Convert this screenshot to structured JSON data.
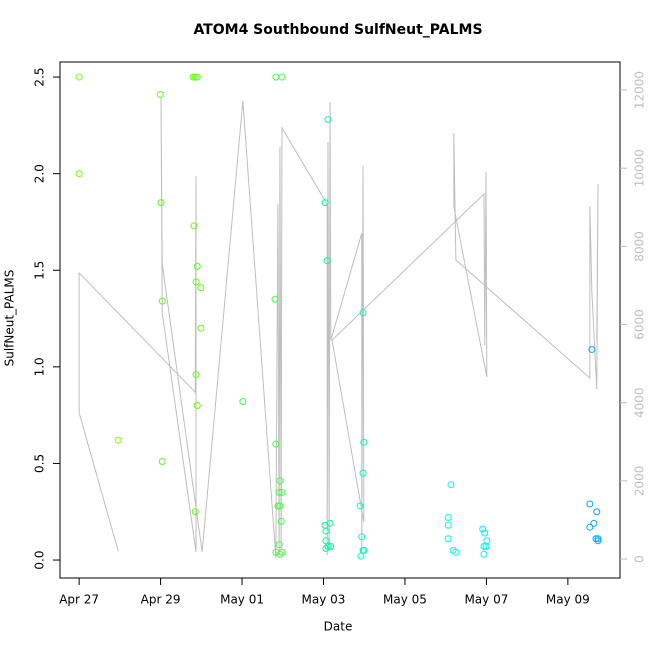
{
  "chart_data": {
    "type": "scatter",
    "title": "ATOM4 Southbound SulfNeut_PALMS",
    "x_label": "Date",
    "y_label": "SulfNeut_PALMS",
    "xlim": [
      -0.47,
      13.28
    ],
    "ylim": [
      -0.093,
      2.578
    ],
    "y2lim": [
      -486,
      12718
    ],
    "xticks": [
      {
        "value": 0,
        "label": "Apr 27"
      },
      {
        "value": 2,
        "label": "Apr 29"
      },
      {
        "value": 4,
        "label": "May 01"
      },
      {
        "value": 6,
        "label": "May 03"
      },
      {
        "value": 8,
        "label": "May 05"
      },
      {
        "value": 10,
        "label": "May 07"
      },
      {
        "value": 12,
        "label": "May 09"
      }
    ],
    "yticks": [
      {
        "value": 0,
        "label": "0.0"
      },
      0.5,
      {
        "value": 1,
        "label": "1.0"
      },
      1.5,
      {
        "value": 2,
        "label": "2.0"
      },
      2.5
    ],
    "y2ticks": [
      0,
      2000,
      4000,
      6000,
      8000,
      10000,
      12000
    ],
    "y2_color": "#bebebe",
    "series": [
      {
        "type": "line",
        "axis": "y2",
        "color": "#bebebe",
        "x": [
          0.96,
          0,
          0,
          2.85,
          2.87,
          2.87,
          2.04,
          2.01,
          2.04,
          3.02,
          4.02,
          4.83,
          4.88,
          4.91,
          4.93,
          4.96,
          4.98,
          6.09,
          6.09,
          6.11,
          6.14,
          6.16,
          6.18,
          6.94,
          6.94,
          6.97,
          6.99,
          6.21,
          9.94,
          9.96,
          9.99,
          10.01,
          9.2,
          9.2,
          9.25,
          12.54,
          12.54,
          12.59,
          12.71,
          12.74,
          12.71
        ],
        "values": [
          200,
          3740,
          7320,
          4270,
          9800,
          180,
          6300,
          11800,
          7550,
          180,
          11720,
          30,
          9080,
          100,
          10540,
          260,
          11030,
          9080,
          100,
          10670,
          360,
          11700,
          5600,
          8340,
          130,
          10060,
          950,
          5600,
          9340,
          5480,
          9900,
          4660,
          9010,
          10900,
          7650,
          4630,
          9030,
          6810,
          4350,
          9600,
          5600
        ]
      },
      {
        "color": "#80ff00",
        "x": [
          0,
          0,
          0.96
        ],
        "values": [
          2.5,
          2.0,
          0.62
        ]
      },
      {
        "color": "#60ff10",
        "x": [
          1.99,
          2.01,
          2.04,
          2.04,
          2.8,
          2.85,
          2.9,
          2.82,
          2.9,
          2.87,
          2.99,
          2.99,
          2.87,
          2.9,
          2.85
        ],
        "values": [
          2.41,
          1.85,
          1.34,
          0.51,
          2.5,
          2.5,
          2.5,
          1.73,
          1.52,
          1.44,
          1.41,
          1.2,
          0.96,
          0.8,
          0.25
        ]
      },
      {
        "color": "#40ff40",
        "x": [
          4.02,
          4.83,
          4.98,
          4.81,
          4.83,
          4.93,
          4.91,
          4.98,
          4.88,
          4.93,
          4.96,
          4.91,
          4.83,
          4.93,
          4.98
        ],
        "values": [
          0.82,
          2.5,
          2.5,
          1.35,
          0.6,
          0.41,
          0.35,
          0.35,
          0.28,
          0.28,
          0.2,
          0.08,
          0.04,
          0.03,
          0.04
        ]
      },
      {
        "color": "#00ff99",
        "x": [
          6.11,
          6.04,
          6.09,
          6.04,
          6.16,
          6.06,
          6.06,
          6.11,
          6.18,
          6.06
        ],
        "values": [
          2.28,
          1.85,
          1.55,
          0.18,
          0.19,
          0.15,
          0.1,
          0.07,
          0.07,
          0.06
        ]
      },
      {
        "color": "#00ffbb",
        "x": [
          6.97,
          6.99,
          6.97,
          6.9,
          6.94,
          6.97,
          6.99,
          6.92
        ],
        "values": [
          1.28,
          0.61,
          0.45,
          0.28,
          0.12,
          0.05,
          0.05,
          0.02
        ]
      },
      {
        "color": "#00ffe6",
        "x": [
          9.13,
          9.06,
          9.06,
          9.06,
          9.18,
          9.25
        ],
        "values": [
          0.39,
          0.22,
          0.18,
          0.11,
          0.05,
          0.04
        ]
      },
      {
        "color": "#00f0ff",
        "x": [
          9.91,
          9.96,
          10.01,
          9.99,
          9.94,
          9.94
        ],
        "values": [
          0.16,
          0.14,
          0.1,
          0.07,
          0.07,
          0.03
        ]
      },
      {
        "color": "#00aaff",
        "x": [
          12.59,
          12.54,
          12.71,
          12.64,
          12.54,
          12.69,
          12.74,
          12.74
        ],
        "values": [
          1.09,
          0.29,
          0.25,
          0.19,
          0.17,
          0.11,
          0.11,
          0.1
        ]
      }
    ]
  }
}
